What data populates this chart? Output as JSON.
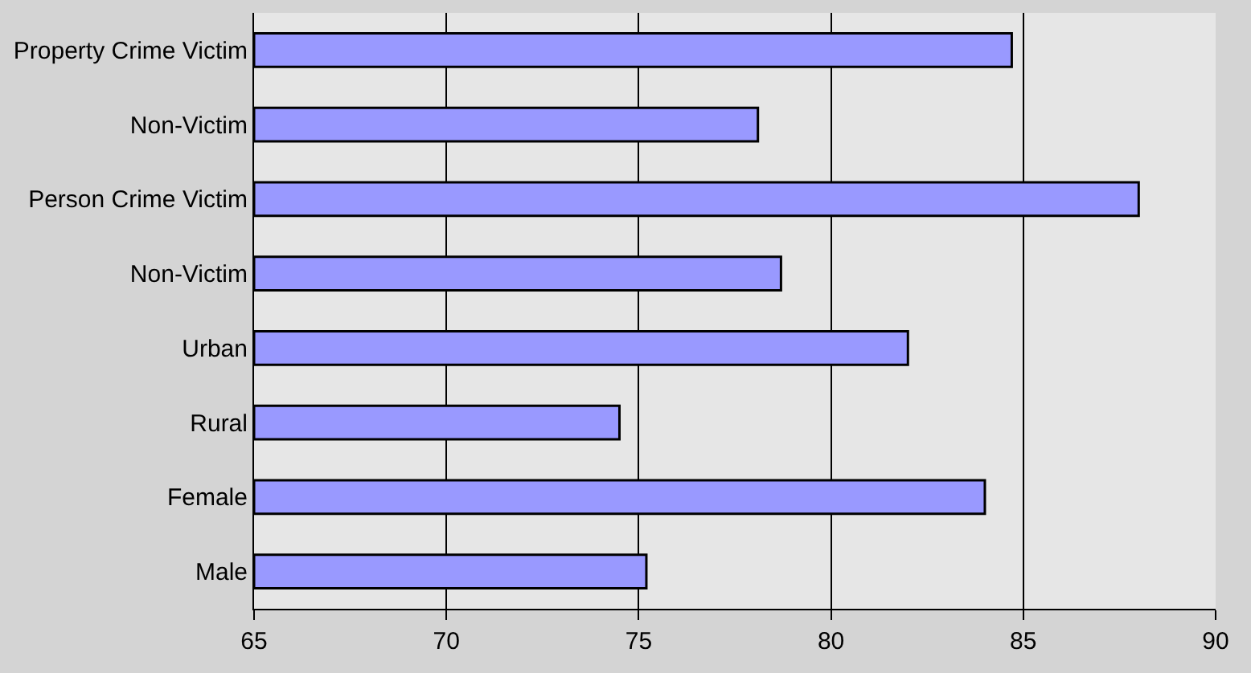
{
  "chart_data": {
    "type": "bar",
    "orientation": "horizontal",
    "categories": [
      "Property Crime Victim",
      "Non-Victim",
      "Person Crime Victim",
      "Non-Victim",
      "Urban",
      "Rural",
      "Female",
      "Male"
    ],
    "values": [
      84.7,
      78.1,
      88.0,
      78.7,
      82.0,
      74.5,
      84.0,
      75.2
    ],
    "color": "#9999ff",
    "xlim": [
      65,
      90
    ],
    "xticks": [
      65,
      70,
      75,
      80,
      85,
      90
    ],
    "grid": "x"
  }
}
